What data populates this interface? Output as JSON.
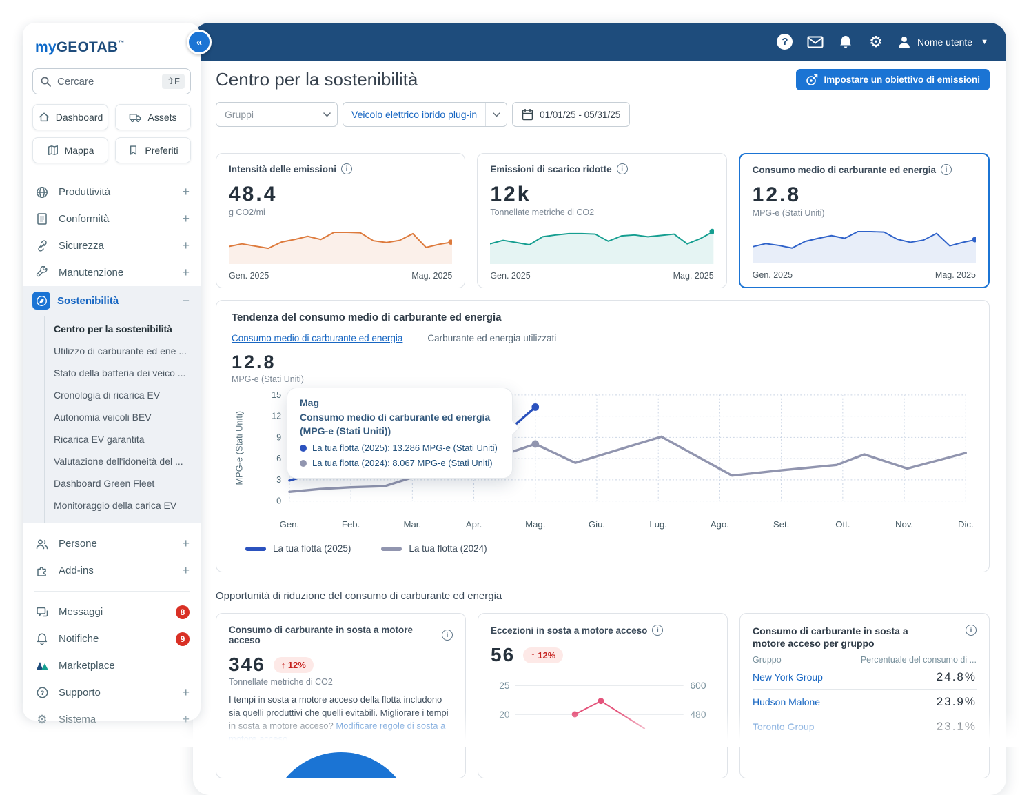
{
  "topbar": {
    "user_label": "Nome utente"
  },
  "sidebar": {
    "logo_my": "my",
    "logo_geotab": "GEOTAB",
    "logo_tm": "™",
    "search": {
      "placeholder": "Cercare",
      "shortcut": "⇧F"
    },
    "quick_links": [
      {
        "label": "Dashboard"
      },
      {
        "label": "Assets"
      },
      {
        "label": "Mappa"
      },
      {
        "label": "Preferiti"
      }
    ],
    "nav": [
      {
        "label": "Produttività",
        "expand": "+"
      },
      {
        "label": "Conformità",
        "expand": "+"
      },
      {
        "label": "Sicurezza",
        "expand": "+"
      },
      {
        "label": "Manutenzione",
        "expand": "+"
      },
      {
        "label": "Sostenibilità",
        "expand": "−"
      }
    ],
    "submenu": [
      "Centro per la sostenibilità",
      "Utilizzo di carburante ed ene ...",
      "Stato della batteria dei veico ...",
      "Cronologia di ricarica EV",
      "Autonomia veicoli BEV",
      "Ricarica EV garantita",
      "Valutazione dell'idoneità del ...",
      "Dashboard Green Fleet",
      "Monitoraggio della carica EV"
    ],
    "nav2": [
      {
        "label": "Persone",
        "expand": "+"
      },
      {
        "label": "Add-ins",
        "expand": "+"
      }
    ],
    "nav3": [
      {
        "label": "Messaggi",
        "badge": "8"
      },
      {
        "label": "Notifiche",
        "badge": "9"
      },
      {
        "label": "Marketplace"
      },
      {
        "label": "Supporto",
        "expand": "+"
      },
      {
        "label": "Sistema",
        "expand": "+"
      }
    ]
  },
  "header": {
    "title": "Centro per la sostenibilità",
    "cta_label": "Impostare un obiettivo di emissioni"
  },
  "filters": {
    "groups_placeholder": "Gruppi",
    "vehicle_type": "Veicolo elettrico ibrido plug-in",
    "date_range": "01/01/25 - 05/31/25"
  },
  "kpis": [
    {
      "title": "Intensità delle emissioni",
      "value": "48.4",
      "unit": "g CO2/mi",
      "range_start": "Gen. 2025",
      "range_end": "Mag. 2025"
    },
    {
      "title": "Emissioni di scarico ridotte",
      "value": "12k",
      "unit": "Tonnellate metriche di CO2",
      "range_start": "Gen. 2025",
      "range_end": "Mag. 2025"
    },
    {
      "title": "Consumo medio di carburante ed energia",
      "value": "12.8",
      "unit": "MPG-e (Stati Uniti)",
      "range_start": "Gen. 2025",
      "range_end": "Mag. 2025"
    }
  ],
  "trend": {
    "title": "Tendenza del consumo medio di carburante ed energia",
    "tabs": [
      {
        "label": "Consumo medio di carburante ed energia"
      },
      {
        "label": "Carburante ed energia utilizzati"
      }
    ],
    "value": "12.8",
    "unit": "MPG-e (Stati Uniti)",
    "tooltip": {
      "month": "Mag",
      "heading": "Consumo medio di carburante ed energia (MPG-e (Stati Uniti))",
      "entries": [
        {
          "label": "La tua flotta (2025): 13.286 MPG-e (Stati Uniti)",
          "color": "#2B52BE"
        },
        {
          "label": "La tua flotta (2024): 8.067 MPG-e (Stati Uniti)",
          "color": "#9195AF"
        }
      ]
    },
    "legend": [
      {
        "label": "La tua flotta (2025)",
        "color": "#2B52BE"
      },
      {
        "label": "La tua flotta (2024)",
        "color": "#9195AF"
      }
    ]
  },
  "opportunities": {
    "heading": "Opportunità di riduzione del consumo di carburante ed energia",
    "idling_fuel": {
      "title": "Consumo di carburante in sosta a motore acceso",
      "value": "346",
      "delta": "↑ 12%",
      "unit": "Tonnellate metriche di CO2",
      "body": "I tempi in sosta a motore acceso della flotta includono sia quelli produttivi che quelli evitabili. Migliorare i tempi in sosta a motore acceso? ",
      "link": "Modificare regole di sosta a motore acceso",
      "after_link": "."
    },
    "idling_exceptions": {
      "title": "Eccezioni in sosta a motore acceso",
      "value": "56",
      "delta": "↑ 12%"
    },
    "idling_by_group": {
      "title": "Consumo di carburante in sosta a motore acceso per gruppo",
      "col_group": "Gruppo",
      "col_pct": "Percentuale del consumo di ...",
      "rows": [
        {
          "group": "New York Group",
          "pct": "24.8%"
        },
        {
          "group": "Hudson Malone",
          "pct": "23.9%"
        },
        {
          "group": "Toronto Group",
          "pct": "23.1%"
        }
      ]
    }
  },
  "colors": {
    "topbar_navy": "#1E4C7C",
    "accent_blue": "#1B74D4",
    "link_blue": "#1766C2",
    "spark_orange": "#DD7A3C",
    "spark_teal": "#159E90",
    "spark_blue": "#2F62C9",
    "line_2025": "#2B52BE",
    "line_2024": "#9195AF",
    "pink_line": "#E4547B",
    "badge_red": "#D93025",
    "delta_red": "#C5221F"
  },
  "chart_data": [
    {
      "id": "emission_intensity_spark",
      "type": "area",
      "title": "Intensità delle emissioni",
      "unit": "g CO2/mi",
      "latest": 48.4,
      "x_range": [
        "Gen. 2025",
        "Mag. 2025"
      ],
      "color": "#DD7A3C",
      "relative_points": [
        32,
        38,
        33,
        28,
        42,
        48,
        55,
        48,
        64,
        64,
        63,
        45,
        41,
        46,
        61,
        30,
        37,
        42
      ]
    },
    {
      "id": "tailpipe_emissions_spark",
      "type": "area",
      "title": "Emissioni di scarico ridotte",
      "unit": "Tonnellate metriche di CO2",
      "latest": "12k",
      "x_range": [
        "Gen. 2025",
        "Mag. 2025"
      ],
      "color": "#159E90",
      "relative_points": [
        38,
        46,
        41,
        36,
        54,
        58,
        61,
        61,
        60,
        44,
        56,
        58,
        54,
        57,
        60,
        38,
        50,
        66
      ]
    },
    {
      "id": "avg_fuel_energy_spark",
      "type": "area",
      "title": "Consumo medio di carburante ed energia",
      "unit": "MPG-e (Stati Uniti)",
      "latest": 12.8,
      "x_range": [
        "Gen. 2025",
        "Mag. 2025"
      ],
      "color": "#2F62C9",
      "relative_points": [
        30,
        37,
        33,
        27,
        42,
        49,
        55,
        49,
        64,
        64,
        63,
        47,
        40,
        45,
        60,
        32,
        40,
        46
      ]
    },
    {
      "id": "fuel_energy_trend",
      "type": "line",
      "title": "Tendenza del consumo medio di carburante ed energia",
      "ylabel": "MPG-e (Stati Uniti)",
      "ylim": [
        0,
        15
      ],
      "yticks": [
        0,
        3,
        6,
        9,
        12,
        15
      ],
      "months": [
        "Gen.",
        "Feb.",
        "Mar.",
        "Apr.",
        "Mag.",
        "Giu.",
        "Lug.",
        "Ago.",
        "Set.",
        "Ott.",
        "Nov.",
        "Dic."
      ],
      "highlighted_month": "Mag",
      "series": [
        {
          "name": "La tua flotta (2025)",
          "color": "#2B52BE",
          "x": [
            0,
            0.35,
            0.65,
            1,
            1.45,
            1.7,
            1.95,
            2.4,
            3.1,
            3.7,
            4
          ],
          "y": [
            2.9,
            3.8,
            4.3,
            4.1,
            3.9,
            3.3,
            3.9,
            4.6,
            6.5,
            11,
            13.286
          ],
          "dots": [
            [
              4,
              13.286
            ]
          ]
        },
        {
          "name": "La tua flotta (2024)",
          "color": "#9195AF",
          "x": [
            0,
            0.5,
            1,
            1.55,
            2.2,
            2.8,
            3.5,
            4,
            4.65,
            6.05,
            7.2,
            8,
            8.9,
            9.35,
            10.05,
            11
          ],
          "y": [
            1.3,
            1.7,
            1.95,
            2.1,
            3.9,
            5,
            6.6,
            8.067,
            5.4,
            9.1,
            3.6,
            4.35,
            5.1,
            6.6,
            4.6,
            6.8
          ],
          "dots": [
            [
              4,
              8.067
            ]
          ]
        }
      ]
    },
    {
      "id": "idling_exceptions_chart",
      "type": "line",
      "title": "Eccezioni in sosta a motore acceso",
      "latest": 56,
      "left_ticks": [
        25,
        20
      ],
      "right_ticks": [
        600,
        480
      ],
      "series": [
        {
          "name": "Eccezioni",
          "color": "#E4547B",
          "x": [
            0.35,
            0.51,
            0.78
          ],
          "y": [
            20,
            22.3,
            17.5
          ],
          "dots": [
            [
              0.35,
              20
            ],
            [
              0.51,
              22.3
            ]
          ]
        }
      ]
    }
  ]
}
